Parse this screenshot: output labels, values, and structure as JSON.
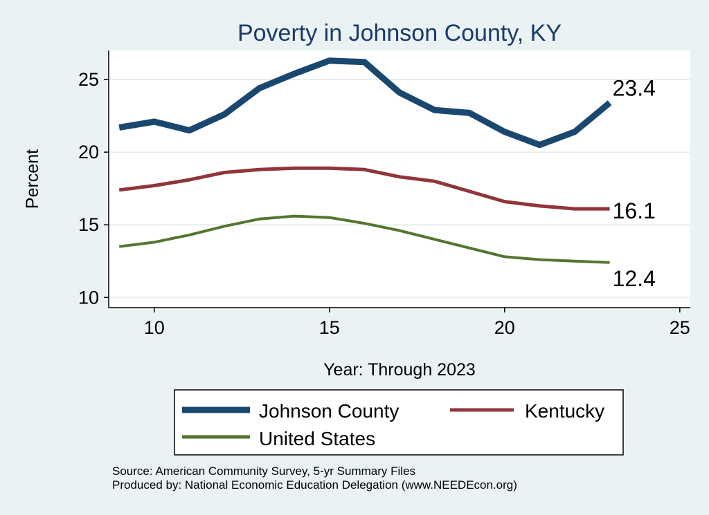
{
  "chart_data": {
    "type": "line",
    "title": "Poverty in Johnson County, KY",
    "xlabel": "Year: Through 2023",
    "ylabel": "Percent",
    "xlim": [
      8.7,
      25.3
    ],
    "ylim": [
      9.3,
      27.0
    ],
    "xticks": [
      10,
      15,
      20,
      25
    ],
    "yticks": [
      10,
      15,
      20,
      25
    ],
    "grid": true,
    "legend_position": "bottom",
    "x": [
      9,
      10,
      11,
      12,
      13,
      14,
      15,
      16,
      17,
      18,
      19,
      20,
      21,
      22,
      23
    ],
    "series": [
      {
        "name": "Johnson County",
        "color": "#1a476f",
        "values": [
          21.7,
          22.1,
          21.5,
          22.6,
          24.4,
          25.4,
          26.3,
          26.2,
          24.1,
          22.9,
          22.7,
          21.4,
          20.5,
          21.4,
          23.4
        ],
        "end_label": "23.4"
      },
      {
        "name": "Kentucky",
        "color": "#90353b",
        "values": [
          17.4,
          17.7,
          18.1,
          18.6,
          18.8,
          18.9,
          18.9,
          18.8,
          18.3,
          18.0,
          17.3,
          16.6,
          16.3,
          16.1,
          16.1
        ],
        "end_label": "16.1"
      },
      {
        "name": "United States",
        "color": "#55752f",
        "values": [
          13.5,
          13.8,
          14.3,
          14.9,
          15.4,
          15.6,
          15.5,
          15.1,
          14.6,
          14.0,
          13.4,
          12.8,
          12.6,
          12.5,
          12.4
        ],
        "end_label": "12.4"
      }
    ]
  },
  "notes": {
    "source": "Source: American Community Survey, 5-yr Summary Files",
    "produced": "Produced by: National Economic Education Delegation (www.NEEDEcon.org)"
  }
}
